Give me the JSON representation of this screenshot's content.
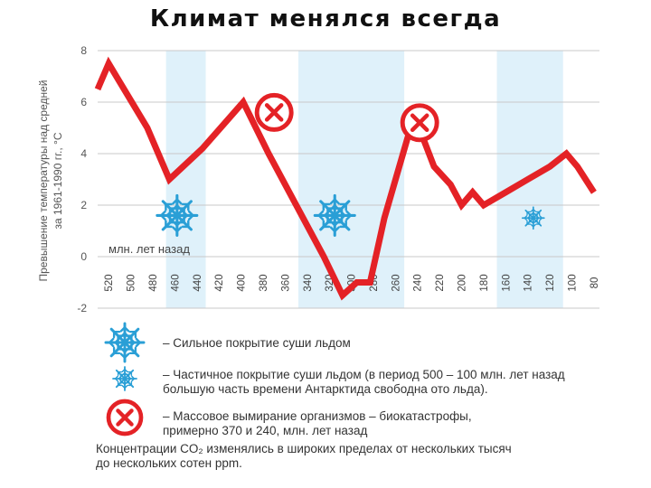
{
  "title": "Климат менялся всегда",
  "chart_data": {
    "type": "line",
    "ylabel_lines": [
      "Превышение температуры над средней",
      "за 1961-1990 гг., °С"
    ],
    "xlabel": "млн. лет назад",
    "x_ticks": [
      "520",
      "500",
      "480",
      "460",
      "440",
      "420",
      "400",
      "380",
      "360",
      "340",
      "320",
      "300",
      "280",
      "260",
      "240",
      "220",
      "200",
      "180",
      "160",
      "140",
      "120",
      "100",
      "80"
    ],
    "y_ticks": [
      "8",
      "6",
      "4",
      "2",
      "0",
      "-2"
    ],
    "ylim": [
      -2,
      8
    ],
    "xlim": [
      530,
      75
    ],
    "grid": "horizontal",
    "line_color": "#e42226",
    "band_color": "#dff1fa",
    "bands": [
      [
        468,
        432
      ],
      [
        348,
        252
      ],
      [
        168,
        108
      ]
    ],
    "series": [
      {
        "x": [
          530,
          520,
          485,
          465,
          435,
          398,
          375,
          350,
          325,
          308,
          295,
          283,
          270,
          243,
          225,
          210,
          200,
          190,
          180,
          160,
          140,
          120,
          105,
          95,
          80
        ],
        "values": [
          6.5,
          7.5,
          5.0,
          3.0,
          4.2,
          6.0,
          4.0,
          2.0,
          0.0,
          -1.5,
          -1.0,
          -1.0,
          1.5,
          5.5,
          3.5,
          2.8,
          2.0,
          2.5,
          2.0,
          2.5,
          3.0,
          3.5,
          4.0,
          3.5,
          2.5
        ]
      }
    ],
    "markers": [
      {
        "type": "snowflake-large",
        "x": 458,
        "y": 1.6
      },
      {
        "type": "snowflake-large",
        "x": 315,
        "y": 1.6
      },
      {
        "type": "snowflake-small",
        "x": 135,
        "y": 1.5
      },
      {
        "type": "extinction-icon",
        "x": 370,
        "y": 5.6
      },
      {
        "type": "extinction-icon",
        "x": 238,
        "y": 5.2
      }
    ]
  },
  "legend": [
    {
      "icon": "snowflake-large",
      "text_lines": [
        "– Сильное покрытие суши льдом"
      ]
    },
    {
      "icon": "snowflake-small",
      "text_lines": [
        "– Частичное покрытие суши льдом (в период 500 – 100 млн. лет назад",
        "большую часть времени Антарктида свободна ото льда)."
      ]
    },
    {
      "icon": "extinction-icon",
      "text_lines": [
        "– Массовое вымирание организмов – биокатастрофы,",
        "примерно 370 и 240, млн. лет назад"
      ]
    }
  ],
  "footer_lines": [
    "Концентрации CO₂ изменялись в широких пределах от нескольких тысяч",
    "до нескольких сотен ppm."
  ],
  "colors": {
    "snowflake": "#2a9fd6",
    "extinction": "#e42226",
    "axis_text": "#555555",
    "grid": "#c8c8c8"
  }
}
